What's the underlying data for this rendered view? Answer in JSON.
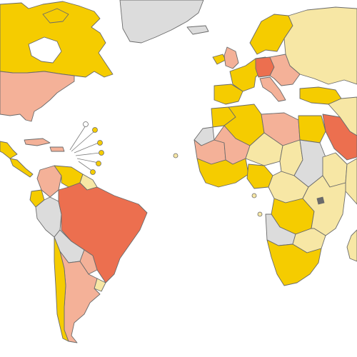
{
  "map": {
    "type": "choropleth-world",
    "legend": null,
    "palette": {
      "none": "#dcdcdc",
      "low": "#f7e7a5",
      "mid": "#f5cc00",
      "high": "#f4b198",
      "highest": "#ec6f4f",
      "ocean": "#ffffff",
      "border": "#6b6b6b"
    },
    "regions": [
      {
        "name": "greenland",
        "level": "none"
      },
      {
        "name": "canada",
        "level": "mid"
      },
      {
        "name": "united-states",
        "level": "high"
      },
      {
        "name": "mexico",
        "level": "mid"
      },
      {
        "name": "central-america",
        "level": "mid"
      },
      {
        "name": "caribbean",
        "level": "high"
      },
      {
        "name": "colombia",
        "level": "high"
      },
      {
        "name": "venezuela",
        "level": "mid"
      },
      {
        "name": "guianas",
        "level": "low"
      },
      {
        "name": "ecuador",
        "level": "mid"
      },
      {
        "name": "peru",
        "level": "none"
      },
      {
        "name": "brazil",
        "level": "highest"
      },
      {
        "name": "bolivia",
        "level": "none"
      },
      {
        "name": "paraguay",
        "level": "high"
      },
      {
        "name": "uruguay",
        "level": "low"
      },
      {
        "name": "argentina",
        "level": "high"
      },
      {
        "name": "chile",
        "level": "mid"
      },
      {
        "name": "iceland",
        "level": "mid"
      },
      {
        "name": "united-kingdom",
        "level": "high"
      },
      {
        "name": "scandinavia",
        "level": "mid"
      },
      {
        "name": "russia",
        "level": "low"
      },
      {
        "name": "western-europe",
        "level": "mid"
      },
      {
        "name": "germany",
        "level": "highest"
      },
      {
        "name": "eastern-europe",
        "level": "high"
      },
      {
        "name": "italy",
        "level": "high"
      },
      {
        "name": "iberia",
        "level": "mid"
      },
      {
        "name": "turkey",
        "level": "mid"
      },
      {
        "name": "middle-east",
        "level": "low"
      },
      {
        "name": "saudi-arabia",
        "level": "highest"
      },
      {
        "name": "egypt",
        "level": "mid"
      },
      {
        "name": "libya",
        "level": "high"
      },
      {
        "name": "algeria",
        "level": "mid"
      },
      {
        "name": "morocco",
        "level": "mid"
      },
      {
        "name": "western-sahara",
        "level": "none"
      },
      {
        "name": "mauritania",
        "level": "high"
      },
      {
        "name": "mali",
        "level": "high"
      },
      {
        "name": "niger",
        "level": "low"
      },
      {
        "name": "chad",
        "level": "low"
      },
      {
        "name": "sudan",
        "level": "none"
      },
      {
        "name": "ethiopia",
        "level": "low"
      },
      {
        "name": "somalia",
        "level": "low"
      },
      {
        "name": "west-africa",
        "level": "mid"
      },
      {
        "name": "nigeria",
        "level": "mid"
      },
      {
        "name": "central-africa",
        "level": "low"
      },
      {
        "name": "congo",
        "level": "mid"
      },
      {
        "name": "east-africa",
        "level": "low"
      },
      {
        "name": "angola",
        "level": "none"
      },
      {
        "name": "zambia",
        "level": "low"
      },
      {
        "name": "southern-africa",
        "level": "mid"
      },
      {
        "name": "madagascar",
        "level": "low"
      }
    ]
  }
}
